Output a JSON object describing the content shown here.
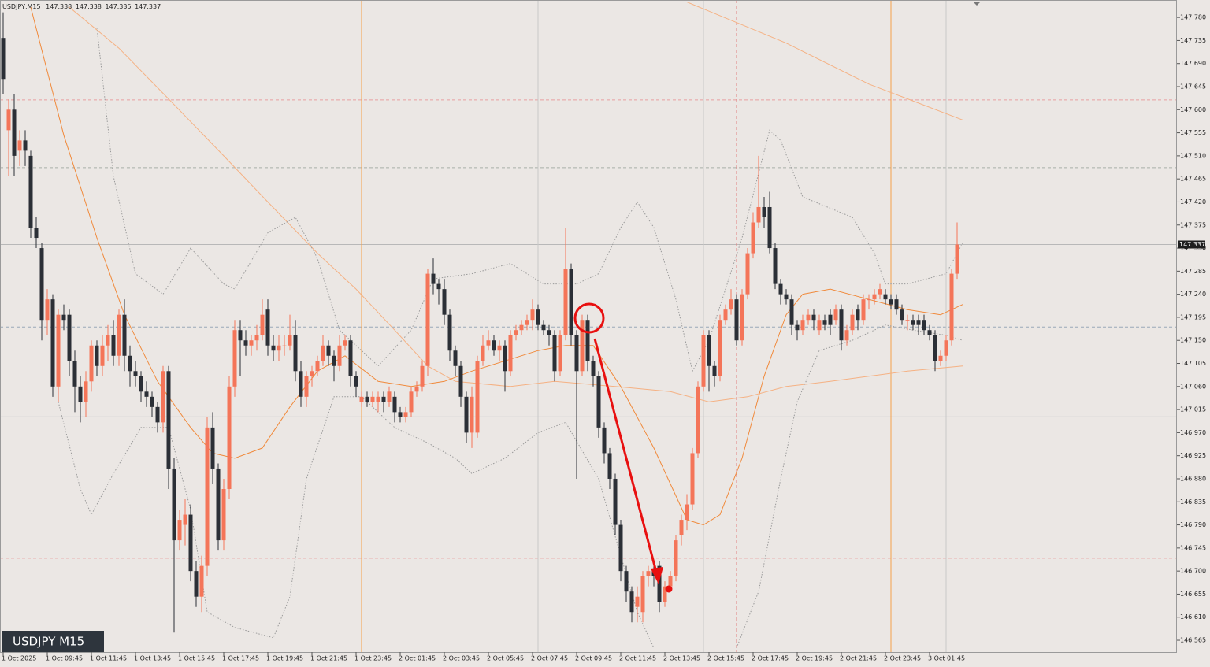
{
  "chart_data": {
    "type": "candlestick",
    "title": "USDJPY,M15",
    "info_values": [
      147.338,
      147.338,
      147.335,
      147.337
    ],
    "watermark": "USDJPY M15",
    "current_price": 147.337,
    "up_color": "#f47559",
    "down_color": "#2b2f36",
    "ylim": [
      146.542,
      147.814
    ],
    "yticks": [
      {
        "value": 147.78,
        "label": "147.780"
      },
      147.735,
      {
        "value": 147.69,
        "label": "147.690"
      },
      147.645,
      {
        "value": 147.6,
        "label": "147.600"
      },
      147.555,
      {
        "value": 147.51,
        "label": "147.510"
      },
      147.465,
      {
        "value": 147.42,
        "label": "147.420"
      },
      147.375,
      {
        "value": 147.33,
        "label": "147.330"
      },
      147.285,
      {
        "value": 147.24,
        "label": "147.240"
      },
      147.195,
      {
        "value": 147.15,
        "label": "147.150"
      },
      147.105,
      {
        "value": 147.06,
        "label": "147.060"
      },
      147.015,
      {
        "value": 146.97,
        "label": "146.970"
      },
      146.925,
      {
        "value": 146.88,
        "label": "146.880"
      },
      146.835,
      {
        "value": 146.79,
        "label": "146.790"
      },
      146.745,
      {
        "value": 146.7,
        "label": "146.700"
      },
      146.655,
      {
        "value": 146.61,
        "label": "146.610"
      },
      146.565
    ],
    "categories": [
      "1 Oct 2025",
      null,
      null,
      null,
      null,
      null,
      null,
      null,
      "1 Oct 09:45",
      null,
      null,
      null,
      null,
      null,
      null,
      null,
      "1 Oct 11:45",
      null,
      null,
      null,
      null,
      null,
      null,
      null,
      "1 Oct 13:45",
      null,
      null,
      null,
      null,
      null,
      null,
      null,
      "1 Oct 15:45",
      null,
      null,
      null,
      null,
      null,
      null,
      null,
      "1 Oct 17:45",
      null,
      null,
      null,
      null,
      null,
      null,
      null,
      "1 Oct 19:45",
      null,
      null,
      null,
      null,
      null,
      null,
      null,
      "1 Oct 21:45",
      null,
      null,
      null,
      null,
      null,
      null,
      null,
      "1 Oct 23:45",
      null,
      null,
      null,
      null,
      null,
      null,
      null,
      "2 Oct 01:45",
      null,
      null,
      null,
      null,
      null,
      null,
      null,
      "2 Oct 03:45",
      null,
      null,
      null,
      null,
      null,
      null,
      null,
      "2 Oct 05:45",
      null,
      null,
      null,
      null,
      null,
      null,
      null,
      "2 Oct 07:45",
      null,
      null,
      null,
      null,
      null,
      null,
      null,
      "2 Oct 09:45",
      null,
      null,
      null,
      null,
      null,
      null,
      null,
      "2 Oct 11:45",
      null,
      null,
      null,
      null,
      null,
      null,
      null,
      "2 Oct 13:45",
      null,
      null,
      null,
      null,
      null,
      null,
      null,
      "2 Oct 15:45",
      null,
      null,
      null,
      null,
      null,
      null,
      null,
      "2 Oct 17:45",
      null,
      null,
      null,
      null,
      null,
      null,
      null,
      "2 Oct 19:45",
      null,
      null,
      null,
      null,
      null,
      null,
      null,
      "2 Oct 21:45",
      null,
      null,
      null,
      null,
      null,
      null,
      null,
      "2 Oct 23:45",
      null,
      null,
      null,
      null,
      null,
      null,
      null,
      "3 Oct 01:45",
      null,
      null,
      null,
      null,
      null
    ],
    "open": [
      147.74,
      147.56,
      147.6,
      147.52,
      147.54,
      147.51,
      147.37,
      147.33,
      147.19,
      147.23,
      147.06,
      147.2,
      147.2,
      147.11,
      147.06,
      147.03,
      147.07,
      147.14,
      147.1,
      147.14,
      147.16,
      147.12,
      147.2,
      147.12,
      147.09,
      147.08,
      147.05,
      147.04,
      147.02,
      146.99,
      147.09,
      146.9,
      146.76,
      146.79,
      146.81,
      146.7,
      146.65,
      146.71,
      146.98,
      146.9,
      146.76,
      146.86,
      147.06,
      147.17,
      147.15,
      147.14,
      147.15,
      147.16,
      147.21,
      147.14,
      147.13,
      147.14,
      147.14,
      147.16,
      147.09,
      147.04,
      147.08,
      147.09,
      147.11,
      147.14,
      147.12,
      147.1,
      147.14,
      147.15,
      147.08,
      147.03,
      147.04,
      147.03,
      147.03,
      147.04,
      147.03,
      147.04,
      147.01,
      147.0,
      147.01,
      147.05,
      147.06,
      147.1,
      147.28,
      147.26,
      147.25,
      147.2,
      147.13,
      147.1,
      147.04,
      146.97,
      146.97,
      147.11,
      147.14,
      147.15,
      147.13,
      147.14,
      147.09,
      147.16,
      147.17,
      147.18,
      147.19,
      147.21,
      147.18,
      147.17,
      147.16,
      147.09,
      147.16,
      147.29,
      147.16,
      147.09,
      147.19,
      147.11,
      147.08,
      146.98,
      146.93,
      146.88,
      146.79,
      146.7,
      146.66,
      146.63,
      146.62,
      146.69,
      146.7,
      146.71,
      146.64,
      146.67,
      146.69,
      146.77,
      146.8,
      146.83,
      146.93,
      147.06,
      147.16,
      147.1,
      147.08,
      147.19,
      147.21,
      147.23,
      147.15,
      147.24,
      147.32,
      147.38,
      147.41,
      147.41,
      147.33,
      147.26,
      147.24,
      147.23,
      147.18,
      147.17,
      147.19,
      147.2,
      147.17,
      147.19,
      147.2,
      147.19,
      147.21,
      147.15,
      147.17,
      147.21,
      147.19,
      147.23,
      147.23,
      147.24,
      147.24,
      147.23,
      147.23,
      147.21,
      147.19,
      147.19,
      147.19,
      147.19,
      147.17,
      147.16,
      147.11,
      147.12,
      147.15,
      147.28
    ],
    "high": [
      147.79,
      147.62,
      147.63,
      147.56,
      147.56,
      147.52,
      147.39,
      147.34,
      147.25,
      147.24,
      147.21,
      147.22,
      147.21,
      147.13,
      147.08,
      147.09,
      147.15,
      147.15,
      147.16,
      147.18,
      147.19,
      147.21,
      147.23,
      147.14,
      147.11,
      147.09,
      147.07,
      147.05,
      147.03,
      147.1,
      147.1,
      146.92,
      146.82,
      146.84,
      146.83,
      146.72,
      146.73,
      147.0,
      147.01,
      146.91,
      146.88,
      147.08,
      147.19,
      147.19,
      147.17,
      147.16,
      147.18,
      147.23,
      147.23,
      147.16,
      147.16,
      147.16,
      147.2,
      147.19,
      147.11,
      147.09,
      147.1,
      147.12,
      147.16,
      147.15,
      147.13,
      147.16,
      147.16,
      147.16,
      147.09,
      147.05,
      147.05,
      147.05,
      147.05,
      147.05,
      147.06,
      147.05,
      147.02,
      147.02,
      147.06,
      147.07,
      147.11,
      147.29,
      147.31,
      147.27,
      147.27,
      147.21,
      147.14,
      147.11,
      147.05,
      147.06,
      147.12,
      147.16,
      147.17,
      147.16,
      147.15,
      147.15,
      147.17,
      147.18,
      147.19,
      147.2,
      147.23,
      147.22,
      147.19,
      147.18,
      147.17,
      147.17,
      147.37,
      147.3,
      147.17,
      147.2,
      147.2,
      147.12,
      147.09,
      146.99,
      146.94,
      146.89,
      146.8,
      146.71,
      146.67,
      146.67,
      146.7,
      146.71,
      146.72,
      146.72,
      146.68,
      146.7,
      146.77,
      146.81,
      146.85,
      146.94,
      147.07,
      147.17,
      147.17,
      147.11,
      147.2,
      147.22,
      147.25,
      147.24,
      147.25,
      147.33,
      147.4,
      147.51,
      147.43,
      147.44,
      147.34,
      147.27,
      147.25,
      147.24,
      147.19,
      147.2,
      147.21,
      147.21,
      147.2,
      147.2,
      147.21,
      147.22,
      147.22,
      147.18,
      147.21,
      147.22,
      147.24,
      147.24,
      147.25,
      147.26,
      147.25,
      147.24,
      147.24,
      147.22,
      147.2,
      147.2,
      147.2,
      147.2,
      147.18,
      147.17,
      147.13,
      147.16,
      147.29,
      147.38
    ],
    "low": [
      147.63,
      147.47,
      147.47,
      147.49,
      147.49,
      147.35,
      147.33,
      147.15,
      147.16,
      147.04,
      147.03,
      147.17,
      147.08,
      147.01,
      146.99,
      147.0,
      147.05,
      147.08,
      147.08,
      147.11,
      147.1,
      147.1,
      147.09,
      147.06,
      147.06,
      147.03,
      147.02,
      147.0,
      146.97,
      146.97,
      146.86,
      146.58,
      146.74,
      146.75,
      146.68,
      146.63,
      146.62,
      146.69,
      146.87,
      146.74,
      146.74,
      146.84,
      147.04,
      147.08,
      147.12,
      147.12,
      147.13,
      147.15,
      147.12,
      147.11,
      147.11,
      147.12,
      147.13,
      147.07,
      147.02,
      147.02,
      147.06,
      147.08,
      147.1,
      147.1,
      147.07,
      147.09,
      147.13,
      147.06,
      147.04,
      147.02,
      147.02,
      147.02,
      147.01,
      147.01,
      147.02,
      146.99,
      146.99,
      146.99,
      147.0,
      147.04,
      147.05,
      147.08,
      147.24,
      147.22,
      147.18,
      147.11,
      147.08,
      147.02,
      146.95,
      146.94,
      146.96,
      147.1,
      147.13,
      147.12,
      147.11,
      147.05,
      147.08,
      147.15,
      147.16,
      147.17,
      147.17,
      147.17,
      147.16,
      147.14,
      147.07,
      147.08,
      147.15,
      147.14,
      146.88,
      147.08,
      147.09,
      147.06,
      146.96,
      146.91,
      146.86,
      146.77,
      146.68,
      146.64,
      146.6,
      146.6,
      146.6,
      146.67,
      146.67,
      146.62,
      146.63,
      146.66,
      146.68,
      146.75,
      146.78,
      146.82,
      146.92,
      147.05,
      147.05,
      147.06,
      147.07,
      147.18,
      147.2,
      147.14,
      147.14,
      147.23,
      147.31,
      147.37,
      147.37,
      147.32,
      147.25,
      147.22,
      147.22,
      147.16,
      147.15,
      147.16,
      147.18,
      147.17,
      147.16,
      147.17,
      147.16,
      147.18,
      147.13,
      147.14,
      147.16,
      147.17,
      147.18,
      147.21,
      147.22,
      147.23,
      147.22,
      147.21,
      147.2,
      147.18,
      147.17,
      147.17,
      147.16,
      147.16,
      147.15,
      147.09,
      147.1,
      147.11,
      147.14,
      147.27
    ],
    "close": [
      147.66,
      147.6,
      147.51,
      147.54,
      147.52,
      147.37,
      147.35,
      147.19,
      147.23,
      147.06,
      147.2,
      147.19,
      147.11,
      147.06,
      147.03,
      147.07,
      147.14,
      147.1,
      147.14,
      147.16,
      147.12,
      147.2,
      147.12,
      147.09,
      147.08,
      147.05,
      147.04,
      147.02,
      146.99,
      147.09,
      146.9,
      146.76,
      146.8,
      146.81,
      146.7,
      146.65,
      146.71,
      146.98,
      146.9,
      146.76,
      146.86,
      147.06,
      147.17,
      147.15,
      147.14,
      147.15,
      147.16,
      147.2,
      147.14,
      147.13,
      147.14,
      147.14,
      147.16,
      147.09,
      147.04,
      147.08,
      147.09,
      147.11,
      147.14,
      147.12,
      147.1,
      147.14,
      147.15,
      147.08,
      147.06,
      147.04,
      147.03,
      147.04,
      147.04,
      147.03,
      147.05,
      147.01,
      147.0,
      147.01,
      147.05,
      147.06,
      147.1,
      147.28,
      147.26,
      147.25,
      147.2,
      147.13,
      147.1,
      147.04,
      146.97,
      147.04,
      147.11,
      147.14,
      147.15,
      147.13,
      147.14,
      147.09,
      147.16,
      147.17,
      147.18,
      147.19,
      147.21,
      147.18,
      147.17,
      147.16,
      147.09,
      147.16,
      147.29,
      147.16,
      147.09,
      147.19,
      147.11,
      147.08,
      146.98,
      146.93,
      146.88,
      146.79,
      146.7,
      146.66,
      146.62,
      146.65,
      146.69,
      146.7,
      146.69,
      146.64,
      146.67,
      146.69,
      146.76,
      146.8,
      146.83,
      146.93,
      147.06,
      147.16,
      147.1,
      147.08,
      147.19,
      147.21,
      147.23,
      147.15,
      147.24,
      147.32,
      147.38,
      147.41,
      147.39,
      147.33,
      147.26,
      147.24,
      147.23,
      147.18,
      147.17,
      147.19,
      147.2,
      147.19,
      147.19,
      147.18,
      147.18,
      147.21,
      147.15,
      147.17,
      147.2,
      147.19,
      147.23,
      147.23,
      147.24,
      147.25,
      147.23,
      147.22,
      147.21,
      147.19,
      147.19,
      147.18,
      147.18,
      147.17,
      147.16,
      147.11,
      147.12,
      147.15,
      147.28,
      147.337
    ],
    "lines": [
      {
        "color": "#f08a3c",
        "dash": false,
        "x": [
          5,
          11,
          17,
          22,
          28,
          34,
          38,
          42,
          47,
          52,
          57,
          62,
          68,
          74,
          80,
          85,
          91,
          97,
          102,
          107,
          112,
          118,
          124,
          127,
          130,
          134,
          138,
          142,
          145,
          150,
          157,
          164,
          170,
          174
        ],
        "values": [
          147.8,
          147.55,
          147.35,
          147.2,
          147.07,
          146.98,
          146.93,
          146.92,
          146.94,
          147.02,
          147.09,
          147.12,
          147.07,
          147.06,
          147.07,
          147.09,
          147.11,
          147.13,
          147.14,
          147.14,
          147.06,
          146.94,
          146.8,
          146.79,
          146.81,
          146.92,
          147.08,
          147.2,
          147.24,
          147.25,
          147.23,
          147.21,
          147.2,
          147.22
        ]
      },
      {
        "color": "#f5b183",
        "dash": false,
        "x": [
          12,
          21,
          31,
          40,
          48,
          57,
          64,
          71,
          77,
          82,
          92,
          100,
          111,
          121,
          128,
          135,
          142,
          150,
          157,
          164,
          174
        ],
        "values": [
          147.8,
          147.72,
          147.61,
          147.51,
          147.42,
          147.32,
          147.25,
          147.17,
          147.1,
          147.07,
          147.06,
          147.07,
          147.06,
          147.05,
          147.03,
          147.04,
          147.06,
          147.07,
          147.08,
          147.09,
          147.1
        ]
      },
      {
        "color": "#f5b183",
        "dash": false,
        "x": [
          124,
          142,
          157,
          174
        ],
        "values": [
          147.81,
          147.73,
          147.65,
          147.58
        ]
      },
      {
        "color": "#9a9a9a",
        "dash": true,
        "x": [
          17,
          20,
          24,
          29,
          34,
          40,
          42,
          48,
          53,
          57,
          61,
          68,
          74,
          78,
          85,
          92,
          98,
          104,
          108,
          112,
          115,
          118,
          122,
          125,
          128,
          134,
          139,
          141,
          145,
          154,
          158,
          160,
          164,
          171,
          174
        ],
        "values": [
          147.76,
          147.47,
          147.28,
          147.24,
          147.33,
          147.26,
          147.25,
          147.36,
          147.39,
          147.31,
          147.17,
          147.1,
          147.17,
          147.27,
          147.28,
          147.3,
          147.26,
          147.26,
          147.28,
          147.37,
          147.42,
          147.37,
          147.23,
          147.09,
          147.15,
          147.35,
          147.56,
          147.54,
          147.43,
          147.39,
          147.32,
          147.26,
          147.26,
          147.28,
          147.34
        ]
      },
      {
        "color": "#9a9a9a",
        "dash": true,
        "x": [
          10,
          14,
          16,
          20,
          25,
          30,
          34,
          37,
          42,
          49,
          52,
          55,
          60,
          65,
          71,
          77,
          82,
          85,
          91,
          97,
          102,
          108,
          112,
          115,
          118,
          125,
          133,
          137,
          141,
          144,
          148,
          154,
          160,
          165,
          171,
          174
        ],
        "values": [
          147.03,
          146.86,
          146.81,
          146.89,
          146.98,
          146.98,
          146.82,
          146.62,
          146.59,
          146.57,
          146.65,
          146.88,
          147.04,
          147.04,
          146.98,
          146.95,
          146.92,
          146.89,
          146.92,
          146.97,
          146.99,
          146.88,
          146.73,
          146.62,
          146.55,
          null,
          146.55,
          146.66,
          146.88,
          147.03,
          147.13,
          147.15,
          147.18,
          147.17,
          147.16,
          147.15
        ]
      }
    ],
    "hlines": [
      {
        "value": 147.619,
        "color": "#e8a0a0",
        "dash": true
      },
      {
        "value": 147.487,
        "color": "#a8b0a8",
        "dash": true
      },
      {
        "value": 147.337,
        "color": "#b8b8b8",
        "dash": false
      },
      {
        "value": 147.176,
        "color": "#9aa8b8",
        "dash": true
      },
      {
        "value": 147.001,
        "color": "#cfcfcf",
        "dash": false
      },
      {
        "value": 146.725,
        "color": "#e8a0a0",
        "dash": true
      }
    ],
    "vlines": [
      {
        "x": 65,
        "color": "#f5a04a",
        "dash": false
      },
      {
        "x": 97,
        "color": "#c8c8c8",
        "dash": false
      },
      {
        "x": 127,
        "color": "#c8c8c8",
        "dash": false
      },
      {
        "x": 133,
        "color": "#e08080",
        "dash": true
      },
      {
        "x": 161,
        "color": "#f5a04a",
        "dash": false
      },
      {
        "x": 171,
        "color": "#c8c8c8",
        "dash": false
      }
    ]
  }
}
